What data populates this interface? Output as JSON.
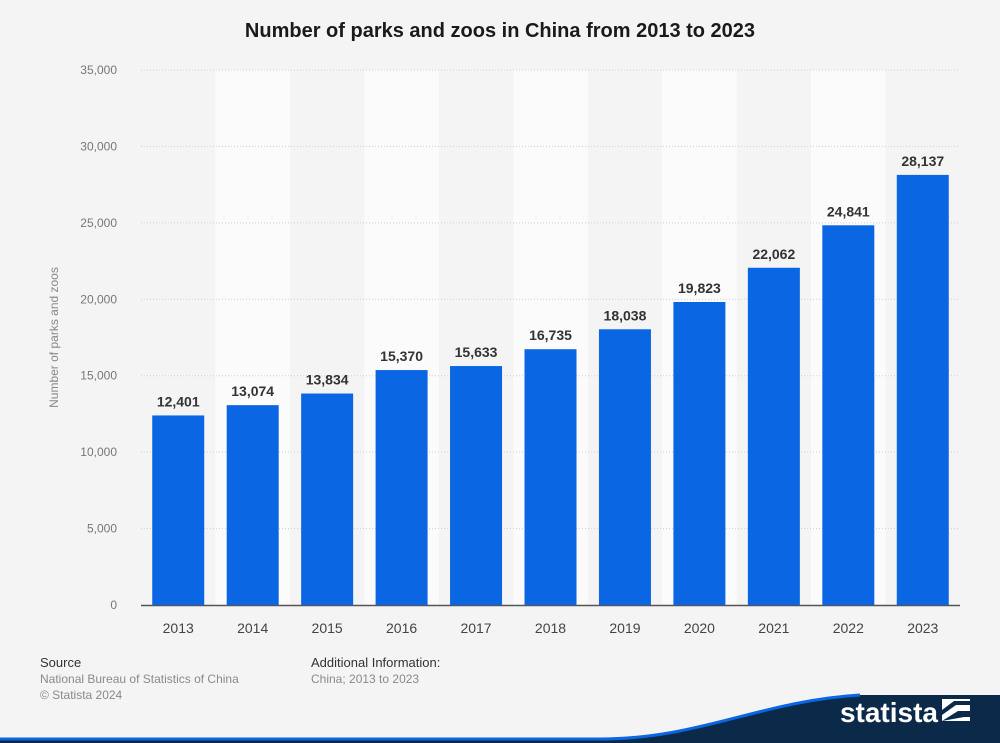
{
  "chart_data": {
    "type": "bar",
    "title": "Number of parks and zoos in China from 2013 to 2023",
    "ylabel": "Number of parks and zoos",
    "xlabel": "",
    "categories": [
      "2013",
      "2014",
      "2015",
      "2016",
      "2017",
      "2018",
      "2019",
      "2020",
      "2021",
      "2022",
      "2023"
    ],
    "values": [
      12401,
      13074,
      13834,
      15370,
      15633,
      16735,
      18038,
      19823,
      22062,
      24841,
      28137
    ],
    "value_labels": [
      "12,401",
      "13,074",
      "13,834",
      "15,370",
      "15,633",
      "16,735",
      "18,038",
      "19,823",
      "22,062",
      "24,841",
      "28,137"
    ],
    "ylim": [
      0,
      35000
    ],
    "yticks": [
      0,
      5000,
      10000,
      15000,
      20000,
      25000,
      30000,
      35000
    ],
    "ytick_labels": [
      "0",
      "5,000",
      "10,000",
      "15,000",
      "20,000",
      "25,000",
      "30,000",
      "35,000"
    ],
    "grid": true,
    "bar_color": "#0b66e4"
  },
  "footer": {
    "source_heading": "Source",
    "source_text": "National Bureau of Statistics of China",
    "copyright": "© Statista 2024",
    "additional_heading": "Additional Information:",
    "additional_text": "China; 2013 to 2023"
  },
  "brand": {
    "name": "statista",
    "color": "#0b2a4a",
    "icon": "statista-logo-icon"
  }
}
